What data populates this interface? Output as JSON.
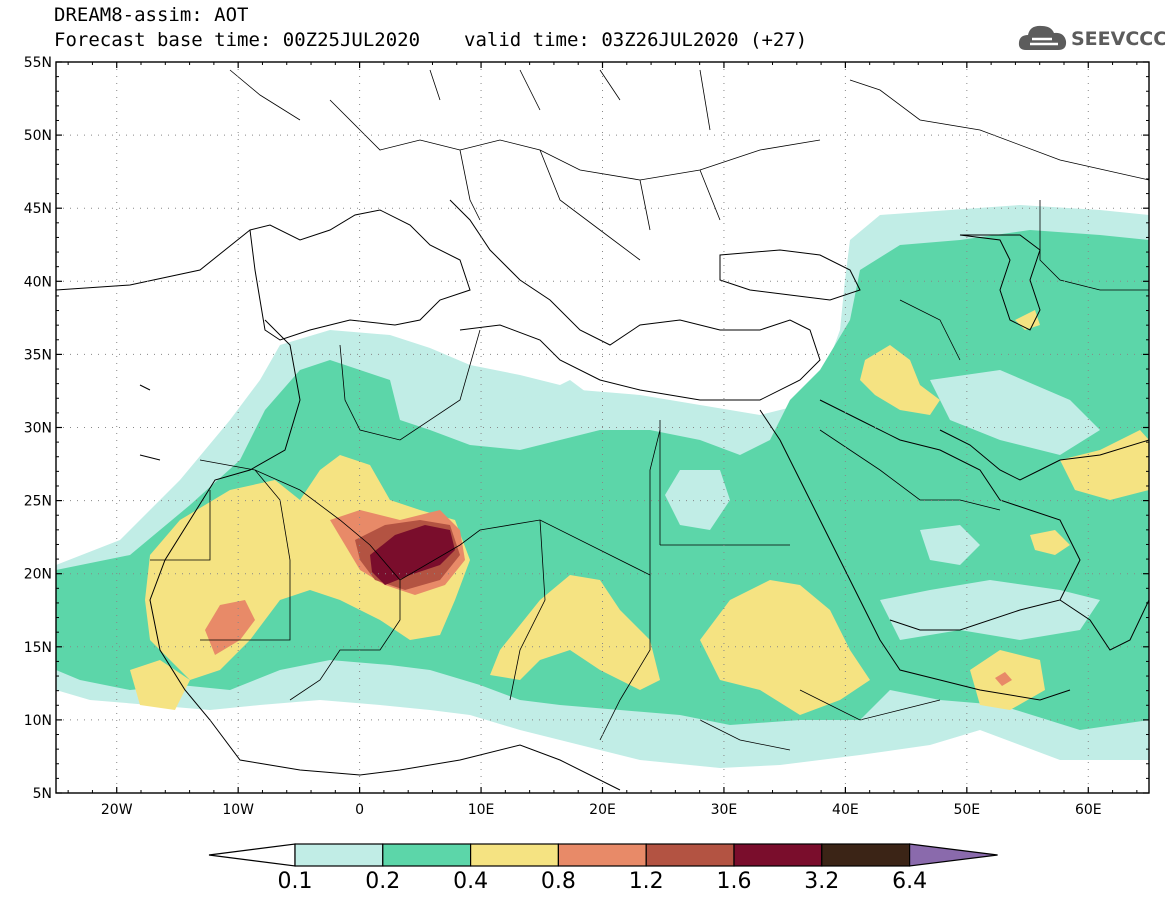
{
  "header": {
    "line1": "DREAM8-assim: AOT",
    "base_label": "Forecast base time: 00Z25JUL2020",
    "valid_label": "valid time: 03Z26JUL2020 (+27)"
  },
  "logo": {
    "text": "SEEVCCC",
    "icon": "cloud-icon"
  },
  "map": {
    "lon_range": [
      -25,
      65
    ],
    "lat_range": [
      5,
      55
    ],
    "lat_ticks": [
      "55N",
      "50N",
      "45N",
      "40N",
      "35N",
      "30N",
      "25N",
      "20N",
      "15N",
      "10N",
      "5N"
    ],
    "lon_ticks": [
      "20W",
      "10W",
      "0",
      "10E",
      "20E",
      "30E",
      "40E",
      "50E",
      "60E"
    ]
  },
  "legend": {
    "boundaries": [
      "0.1",
      "0.2",
      "0.4",
      "0.8",
      "1.2",
      "1.6",
      "3.2",
      "6.4"
    ],
    "colors": [
      "#ffffff",
      "#c1ede6",
      "#5cd6a9",
      "#f5e382",
      "#e88a68",
      "#b35342",
      "#7a0d2c",
      "#3b2416",
      "#8a6aac"
    ]
  }
}
